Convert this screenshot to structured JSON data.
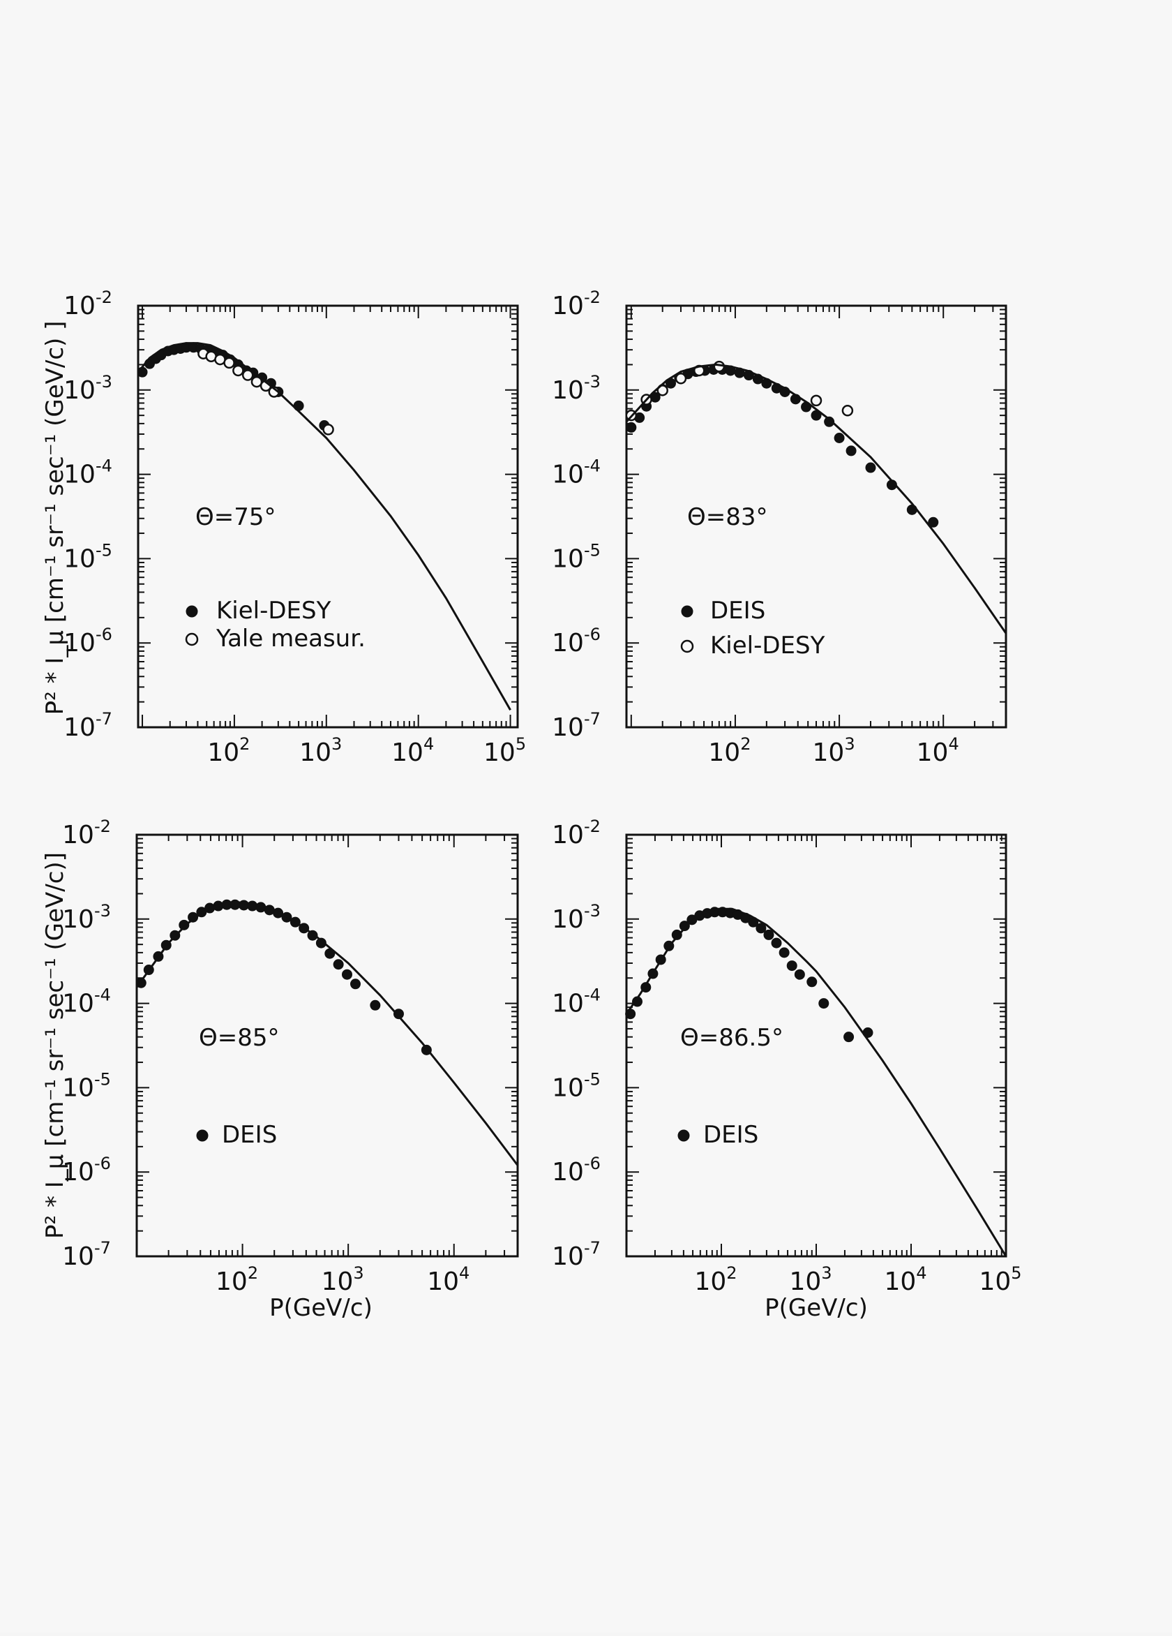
{
  "figure": {
    "ylabel_top": "P² * I_μ [cm⁻¹ sr⁻¹ sec⁻¹ (GeV/c) ]",
    "ylabel_bottom": "P² * I_μ [cm⁻¹ sr⁻¹ sec⁻¹ (GeV/c)]",
    "xlabel": "P(GeV/c)"
  },
  "chart_data": [
    {
      "type": "scatter",
      "annotation": "Θ=75°",
      "xscale": "log",
      "yscale": "log",
      "xlim": [
        9,
        120000
      ],
      "ylim": [
        1e-07,
        0.01
      ],
      "xtick_labels": [
        "10²",
        "10³",
        "10⁴",
        "10⁵"
      ],
      "ytick_labels": [
        "10⁻²",
        "10⁻³",
        "10⁻⁴",
        "10⁻⁵",
        "10⁻⁶",
        "10⁻⁷"
      ],
      "ylabel": "P² * I_μ [cm⁻¹ sr⁻¹ sec⁻¹ (GeV/c) ]",
      "legend": [
        {
          "label": "Kiel-DESY",
          "marker": "filled"
        },
        {
          "label": "Yale measur.",
          "marker": "open"
        }
      ],
      "series": [
        {
          "name": "Kiel-DESY",
          "marker": "filled",
          "points": [
            [
              10,
              0.00163
            ],
            [
              12,
              0.00205
            ],
            [
              14,
              0.00235
            ],
            [
              16,
              0.0026
            ],
            [
              19,
              0.0029
            ],
            [
              22,
              0.003
            ],
            [
              26,
              0.0031
            ],
            [
              30,
              0.0032
            ],
            [
              36,
              0.0032
            ],
            [
              43,
              0.0031
            ],
            [
              52,
              0.003
            ],
            [
              62,
              0.0028
            ],
            [
              75,
              0.0026
            ],
            [
              90,
              0.0023
            ],
            [
              110,
              0.002
            ],
            [
              135,
              0.0017
            ],
            [
              160,
              0.0016
            ],
            [
              200,
              0.0014
            ],
            [
              250,
              0.0012
            ],
            [
              300,
              0.00095
            ],
            [
              500,
              0.00065
            ],
            [
              950,
              0.00038
            ]
          ]
        },
        {
          "name": "Yale measur.",
          "marker": "open",
          "points": [
            [
              46,
              0.0027
            ],
            [
              56,
              0.0025
            ],
            [
              70,
              0.0023
            ],
            [
              88,
              0.0021
            ],
            [
              110,
              0.0017
            ],
            [
              140,
              0.0015
            ],
            [
              175,
              0.00125
            ],
            [
              220,
              0.00112
            ],
            [
              270,
              0.00095
            ],
            [
              1050,
              0.00034
            ]
          ]
        },
        {
          "name": "",
          "type": "line",
          "points": [
            [
              9,
              0.00163
            ],
            [
              12,
              0.0024
            ],
            [
              16,
              0.003
            ],
            [
              22,
              0.0034
            ],
            [
              30,
              0.0036
            ],
            [
              40,
              0.0036
            ],
            [
              55,
              0.0034
            ],
            [
              75,
              0.0029
            ],
            [
              100,
              0.0024
            ],
            [
              150,
              0.0017
            ],
            [
              200,
              0.00135
            ],
            [
              300,
              0.00095
            ],
            [
              500,
              0.00056
            ],
            [
              1000,
              0.00027
            ],
            [
              2000,
              0.000112
            ],
            [
              5000,
              3.2e-05
            ],
            [
              10000,
              1.1e-05
            ],
            [
              20000,
              3.4e-06
            ],
            [
              50000,
              6e-07
            ],
            [
              100000,
              1.6e-07
            ]
          ]
        }
      ]
    },
    {
      "type": "scatter",
      "annotation": "Θ=83°",
      "xscale": "log",
      "yscale": "log",
      "xlim": [
        9,
        40000
      ],
      "ylim": [
        1e-07,
        0.01
      ],
      "xtick_labels": [
        "10²",
        "10³",
        "10⁴"
      ],
      "ytick_labels": [
        "10⁻²",
        "10⁻³",
        "10⁻⁴",
        "10⁻⁵",
        "10⁻⁶",
        "10⁻⁷"
      ],
      "legend": [
        {
          "label": "DEIS",
          "marker": "filled"
        },
        {
          "label": "Kiel-DESY",
          "marker": "open"
        }
      ],
      "series": [
        {
          "name": "DEIS",
          "marker": "filled",
          "points": [
            [
              10,
              0.00036
            ],
            [
              12,
              0.00047
            ],
            [
              14,
              0.00064
            ],
            [
              17,
              0.00082
            ],
            [
              20,
              0.00102
            ],
            [
              24,
              0.0012
            ],
            [
              29,
              0.0014
            ],
            [
              35,
              0.00155
            ],
            [
              42,
              0.00165
            ],
            [
              51,
              0.0017
            ],
            [
              62,
              0.00175
            ],
            [
              75,
              0.00175
            ],
            [
              90,
              0.0017
            ],
            [
              110,
              0.0016
            ],
            [
              135,
              0.0015
            ],
            [
              165,
              0.00135
            ],
            [
              200,
              0.0012
            ],
            [
              250,
              0.00105
            ],
            [
              300,
              0.00095
            ],
            [
              380,
              0.00078
            ],
            [
              480,
              0.00063
            ],
            [
              600,
              0.0005
            ],
            [
              800,
              0.00042
            ],
            [
              1000,
              0.00027
            ],
            [
              1300,
              0.00019
            ],
            [
              2000,
              0.00012
            ],
            [
              3200,
              7.5e-05
            ],
            [
              5000,
              3.8e-05
            ],
            [
              8000,
              2.7e-05
            ]
          ]
        },
        {
          "name": "Kiel-DESY",
          "marker": "open",
          "points": [
            [
              10,
              0.0005
            ],
            [
              14,
              0.00077
            ],
            [
              20,
              0.00099
            ],
            [
              30,
              0.00137
            ],
            [
              45,
              0.0017
            ],
            [
              70,
              0.0019
            ],
            [
              600,
              0.00075
            ],
            [
              1200,
              0.00057
            ]
          ]
        },
        {
          "name": "",
          "type": "line",
          "points": [
            [
              9,
              0.00042
            ],
            [
              12,
              0.00062
            ],
            [
              16,
              0.00092
            ],
            [
              22,
              0.0013
            ],
            [
              30,
              0.00165
            ],
            [
              45,
              0.0019
            ],
            [
              65,
              0.002
            ],
            [
              90,
              0.0019
            ],
            [
              130,
              0.0017
            ],
            [
              200,
              0.00135
            ],
            [
              300,
              0.00105
            ],
            [
              500,
              0.0007
            ],
            [
              800,
              0.00045
            ],
            [
              1000,
              0.00035
            ],
            [
              2000,
              0.00016
            ],
            [
              5000,
              4.5e-05
            ],
            [
              10000,
              1.5e-05
            ],
            [
              20000,
              4.5e-06
            ],
            [
              40000,
              1.3e-06
            ]
          ]
        }
      ]
    },
    {
      "type": "scatter",
      "annotation": "Θ=85°",
      "xscale": "log",
      "yscale": "log",
      "xlim": [
        10,
        40000
      ],
      "ylim": [
        1e-07,
        0.01
      ],
      "xtick_labels": [
        "10²",
        "10³",
        "10⁴"
      ],
      "ytick_labels": [
        "10⁻²",
        "10⁻³",
        "10⁻⁴",
        "10⁻⁵",
        "10⁻⁶",
        "10⁻⁷"
      ],
      "xlabel": "P(GeV/c)",
      "ylabel": "P² * I_μ [cm⁻¹ sr⁻¹ sec⁻¹ (GeV/c)]",
      "legend": [
        {
          "label": "DEIS",
          "marker": "filled"
        }
      ],
      "series": [
        {
          "name": "DEIS",
          "marker": "filled",
          "points": [
            [
              11,
              0.000175
            ],
            [
              13,
              0.00025
            ],
            [
              16,
              0.00036
            ],
            [
              19,
              0.00049
            ],
            [
              23,
              0.00064
            ],
            [
              28,
              0.00085
            ],
            [
              34,
              0.00105
            ],
            [
              41,
              0.00121
            ],
            [
              49,
              0.00135
            ],
            [
              59,
              0.00143
            ],
            [
              71,
              0.00148
            ],
            [
              85,
              0.00148
            ],
            [
              103,
              0.00146
            ],
            [
              124,
              0.00143
            ],
            [
              149,
              0.00138
            ],
            [
              180,
              0.00128
            ],
            [
              217,
              0.00118
            ],
            [
              262,
              0.00105
            ],
            [
              316,
              0.00092
            ],
            [
              381,
              0.00078
            ],
            [
              460,
              0.00064
            ],
            [
              555,
              0.00052
            ],
            [
              670,
              0.00039
            ],
            [
              808,
              0.00029
            ],
            [
              975,
              0.00022
            ],
            [
              1170,
              0.00017
            ],
            [
              1800,
              9.5e-05
            ],
            [
              3000,
              7.5e-05
            ],
            [
              5500,
              2.8e-05
            ]
          ]
        },
        {
          "name": "",
          "type": "line",
          "points": [
            [
              10,
              0.000155
            ],
            [
              14,
              0.00028
            ],
            [
              20,
              0.00052
            ],
            [
              30,
              0.00088
            ],
            [
              45,
              0.00128
            ],
            [
              65,
              0.0015
            ],
            [
              90,
              0.00158
            ],
            [
              130,
              0.00152
            ],
            [
              200,
              0.00128
            ],
            [
              300,
              0.00098
            ],
            [
              500,
              0.00062
            ],
            [
              800,
              0.00038
            ],
            [
              1000,
              0.0003
            ],
            [
              2000,
              0.000125
            ],
            [
              5000,
              3.4e-05
            ],
            [
              10000,
              1.15e-05
            ],
            [
              20000,
              3.8e-06
            ],
            [
              40000,
              1.2e-06
            ]
          ]
        }
      ]
    },
    {
      "type": "scatter",
      "annotation": "Θ=86.5°",
      "xscale": "log",
      "yscale": "log",
      "xlim": [
        10,
        100000
      ],
      "ylim": [
        1e-07,
        0.01
      ],
      "xtick_labels": [
        "10²",
        "10³",
        "10⁴",
        "10⁵"
      ],
      "ytick_labels": [
        "10⁻²",
        "10⁻³",
        "10⁻⁴",
        "10⁻⁵",
        "10⁻⁶",
        "10⁻⁷"
      ],
      "xlabel": "P(GeV/c)",
      "legend": [
        {
          "label": "DEIS",
          "marker": "filled"
        }
      ],
      "series": [
        {
          "name": "DEIS",
          "marker": "filled",
          "points": [
            [
              11,
              7.5e-05
            ],
            [
              13,
              0.000105
            ],
            [
              16,
              0.000155
            ],
            [
              19,
              0.000225
            ],
            [
              23,
              0.00033
            ],
            [
              28,
              0.00048
            ],
            [
              34,
              0.00065
            ],
            [
              41,
              0.00083
            ],
            [
              49,
              0.00098
            ],
            [
              59,
              0.0011
            ],
            [
              71,
              0.00117
            ],
            [
              85,
              0.00121
            ],
            [
              103,
              0.00121
            ],
            [
              124,
              0.00118
            ],
            [
              149,
              0.00113
            ],
            [
              180,
              0.00103
            ],
            [
              217,
              0.00092
            ],
            [
              262,
              0.00078
            ],
            [
              316,
              0.00065
            ],
            [
              381,
              0.00052
            ],
            [
              460,
              0.0004
            ],
            [
              555,
              0.00028
            ],
            [
              670,
              0.00022
            ],
            [
              900,
              0.00018
            ],
            [
              1200,
              0.0001
            ],
            [
              2200,
              4e-05
            ],
            [
              3500,
              4.5e-05
            ]
          ]
        },
        {
          "name": "",
          "type": "line",
          "points": [
            [
              10,
              7.5e-05
            ],
            [
              14,
              0.00013
            ],
            [
              20,
              0.00025
            ],
            [
              30,
              0.00052
            ],
            [
              45,
              0.00088
            ],
            [
              65,
              0.00118
            ],
            [
              90,
              0.00132
            ],
            [
              130,
              0.00132
            ],
            [
              200,
              0.0011
            ],
            [
              300,
              0.00085
            ],
            [
              500,
              0.00052
            ],
            [
              800,
              0.00031
            ],
            [
              1000,
              0.00024
            ],
            [
              2000,
              9e-05
            ],
            [
              5000,
              2.1e-05
            ],
            [
              10000,
              6.5e-06
            ],
            [
              20000,
              1.9e-06
            ],
            [
              50000,
              3.6e-07
            ],
            [
              100000,
              1e-07
            ]
          ]
        }
      ]
    }
  ]
}
